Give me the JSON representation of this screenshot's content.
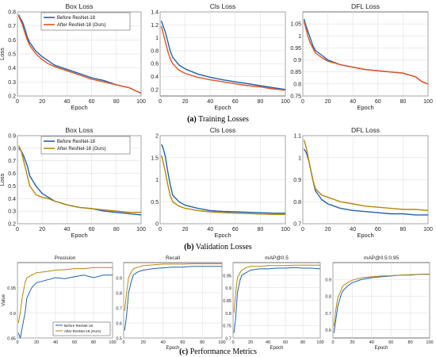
{
  "captions": {
    "a_label": "(a)",
    "a_text": "Training Losses",
    "b_label": "(b)",
    "b_text": "Validation Losses",
    "c_label": "(c)",
    "c_text": "Performance Metrics"
  },
  "colors": {
    "before": "#1f62b3",
    "after": "#e4511d",
    "after_metrics": "#b8860b"
  },
  "chart_data": [
    {
      "id": "train-box",
      "type": "line",
      "title": "Box Loss",
      "xlabel": "Epoch",
      "ylabel": "Loss",
      "xlim": [
        0,
        100
      ],
      "ylim": [
        0.2,
        0.8
      ],
      "xticks": [
        0,
        20,
        40,
        60,
        80,
        100
      ],
      "yticks": [
        0.2,
        0.3,
        0.4,
        0.5,
        0.6,
        0.7,
        0.8
      ],
      "grid": true,
      "legend": "top-right",
      "series": [
        {
          "name": "Before ResNet-18",
          "color": "#1f62b3",
          "x": [
            1,
            2,
            4,
            6,
            8,
            10,
            15,
            20,
            25,
            30,
            40,
            50,
            60,
            70,
            80,
            90,
            95,
            100
          ],
          "y": [
            0.78,
            0.76,
            0.73,
            0.68,
            0.62,
            0.58,
            0.52,
            0.48,
            0.45,
            0.42,
            0.39,
            0.36,
            0.33,
            0.31,
            0.28,
            0.26,
            0.24,
            0.22
          ]
        },
        {
          "name": "After ResNet-18 (Ours)",
          "color": "#e4511d",
          "x": [
            1,
            2,
            4,
            6,
            8,
            10,
            15,
            20,
            25,
            30,
            40,
            50,
            60,
            70,
            80,
            90,
            95,
            100
          ],
          "y": [
            0.77,
            0.75,
            0.71,
            0.65,
            0.6,
            0.56,
            0.5,
            0.46,
            0.43,
            0.41,
            0.38,
            0.35,
            0.32,
            0.3,
            0.28,
            0.26,
            0.24,
            0.22
          ]
        }
      ]
    },
    {
      "id": "train-cls",
      "type": "line",
      "title": "Cls Loss",
      "xlabel": "Epoch",
      "ylabel": "",
      "xlim": [
        0,
        100
      ],
      "ylim": [
        0.1,
        1.4
      ],
      "xticks": [
        0,
        20,
        40,
        60,
        80,
        100
      ],
      "yticks": [
        0.2,
        0.4,
        0.6,
        0.8,
        1.0,
        1.2,
        1.4
      ],
      "grid": true,
      "series": [
        {
          "name": "Before ResNet-18",
          "color": "#1f62b3",
          "x": [
            1,
            2,
            4,
            6,
            8,
            10,
            15,
            20,
            30,
            40,
            50,
            60,
            70,
            80,
            90,
            100
          ],
          "y": [
            1.26,
            1.2,
            1.1,
            0.95,
            0.8,
            0.7,
            0.58,
            0.52,
            0.44,
            0.39,
            0.35,
            0.32,
            0.29,
            0.26,
            0.23,
            0.2
          ]
        },
        {
          "name": "After ResNet-18 (Ours)",
          "color": "#e4511d",
          "x": [
            1,
            2,
            4,
            6,
            8,
            10,
            15,
            20,
            30,
            40,
            50,
            60,
            70,
            80,
            90,
            100
          ],
          "y": [
            1.18,
            1.1,
            0.95,
            0.8,
            0.68,
            0.6,
            0.5,
            0.45,
            0.39,
            0.35,
            0.32,
            0.29,
            0.26,
            0.24,
            0.21,
            0.19
          ]
        }
      ]
    },
    {
      "id": "train-dfl",
      "type": "line",
      "title": "DFL Loss",
      "xlabel": "Epoch",
      "ylabel": "",
      "xlim": [
        0,
        100
      ],
      "ylim": [
        0.75,
        1.1
      ],
      "xticks": [
        0,
        20,
        40,
        60,
        80,
        100
      ],
      "yticks": [
        0.75,
        0.8,
        0.85,
        0.9,
        0.95,
        1.0,
        1.05
      ],
      "grid": true,
      "series": [
        {
          "name": "Before ResNet-18",
          "color": "#1f62b3",
          "x": [
            1,
            2,
            4,
            6,
            8,
            10,
            15,
            20,
            30,
            40,
            50,
            60,
            70,
            80,
            90,
            95,
            100
          ],
          "y": [
            1.07,
            1.05,
            1.02,
            0.99,
            0.96,
            0.94,
            0.92,
            0.9,
            0.88,
            0.87,
            0.86,
            0.855,
            0.85,
            0.845,
            0.83,
            0.81,
            0.8
          ]
        },
        {
          "name": "After ResNet-18 (Ours)",
          "color": "#e4511d",
          "x": [
            1,
            2,
            4,
            6,
            8,
            10,
            15,
            20,
            30,
            40,
            50,
            60,
            70,
            80,
            90,
            95,
            100
          ],
          "y": [
            1.06,
            1.04,
            1.0,
            0.97,
            0.95,
            0.93,
            0.91,
            0.895,
            0.88,
            0.87,
            0.86,
            0.855,
            0.85,
            0.845,
            0.83,
            0.81,
            0.8
          ]
        }
      ]
    },
    {
      "id": "val-box",
      "type": "line",
      "title": "Box Loss",
      "xlabel": "Epoch",
      "ylabel": "Loss",
      "xlim": [
        0,
        100
      ],
      "ylim": [
        0.2,
        0.9
      ],
      "xticks": [
        0,
        20,
        40,
        60,
        80,
        100
      ],
      "yticks": [
        0.2,
        0.3,
        0.4,
        0.5,
        0.6,
        0.7,
        0.8,
        0.9
      ],
      "grid": true,
      "legend": "top-right",
      "series": [
        {
          "name": "Before ResNet-18",
          "color": "#1f62b3",
          "x": [
            1,
            3,
            5,
            8,
            10,
            15,
            20,
            25,
            30,
            40,
            50,
            60,
            70,
            80,
            90,
            100
          ],
          "y": [
            0.8,
            0.78,
            0.74,
            0.66,
            0.58,
            0.5,
            0.44,
            0.41,
            0.38,
            0.35,
            0.33,
            0.32,
            0.3,
            0.29,
            0.28,
            0.27
          ]
        },
        {
          "name": "After ResNet-18 (Ours)",
          "color": "#b8860b",
          "x": [
            1,
            3,
            5,
            8,
            10,
            15,
            20,
            25,
            30,
            40,
            50,
            60,
            70,
            80,
            90,
            100
          ],
          "y": [
            0.82,
            0.78,
            0.7,
            0.58,
            0.5,
            0.43,
            0.41,
            0.4,
            0.38,
            0.35,
            0.33,
            0.32,
            0.31,
            0.3,
            0.29,
            0.29
          ]
        }
      ]
    },
    {
      "id": "val-cls",
      "type": "line",
      "title": "Cls Loss",
      "xlabel": "Epoch",
      "ylabel": "",
      "xlim": [
        0,
        100
      ],
      "ylim": [
        0,
        2
      ],
      "xticks": [
        0,
        20,
        40,
        60,
        80,
        100
      ],
      "yticks": [
        0,
        0.5,
        1.0,
        1.5,
        2.0
      ],
      "grid": true,
      "series": [
        {
          "name": "Before ResNet-18",
          "color": "#1f62b3",
          "x": [
            1,
            2,
            4,
            6,
            8,
            10,
            15,
            20,
            30,
            40,
            50,
            60,
            70,
            80,
            90,
            100
          ],
          "y": [
            1.8,
            1.75,
            1.55,
            1.2,
            0.9,
            0.65,
            0.5,
            0.42,
            0.35,
            0.3,
            0.28,
            0.27,
            0.26,
            0.25,
            0.24,
            0.24
          ]
        },
        {
          "name": "After ResNet-18 (Ours)",
          "color": "#b8860b",
          "x": [
            1,
            2,
            4,
            6,
            8,
            10,
            15,
            20,
            30,
            40,
            50,
            60,
            70,
            80,
            90,
            100
          ],
          "y": [
            1.55,
            1.45,
            1.2,
            0.9,
            0.65,
            0.5,
            0.4,
            0.35,
            0.3,
            0.27,
            0.25,
            0.24,
            0.23,
            0.22,
            0.21,
            0.21
          ]
        }
      ]
    },
    {
      "id": "val-dfl",
      "type": "line",
      "title": "DFL Loss",
      "xlabel": "Epoch",
      "ylabel": "",
      "xlim": [
        0,
        100
      ],
      "ylim": [
        0.7,
        1.1
      ],
      "xticks": [
        0,
        20,
        40,
        60,
        80,
        100
      ],
      "yticks": [
        0.7,
        0.8,
        0.9,
        1.0,
        1.1
      ],
      "grid": true,
      "series": [
        {
          "name": "Before ResNet-18",
          "color": "#1f62b3",
          "x": [
            1,
            3,
            5,
            8,
            10,
            15,
            20,
            25,
            30,
            40,
            50,
            60,
            70,
            80,
            90,
            100
          ],
          "y": [
            1.04,
            1.02,
            0.98,
            0.9,
            0.85,
            0.81,
            0.79,
            0.78,
            0.77,
            0.76,
            0.755,
            0.75,
            0.745,
            0.745,
            0.74,
            0.74
          ]
        },
        {
          "name": "After ResNet-18 (Ours)",
          "color": "#b8860b",
          "x": [
            1,
            3,
            5,
            8,
            10,
            15,
            20,
            25,
            30,
            40,
            50,
            60,
            70,
            80,
            90,
            100
          ],
          "y": [
            1.08,
            1.04,
            0.98,
            0.9,
            0.86,
            0.83,
            0.82,
            0.81,
            0.8,
            0.79,
            0.78,
            0.775,
            0.77,
            0.765,
            0.765,
            0.76
          ]
        }
      ]
    },
    {
      "id": "precision",
      "type": "line",
      "title": "Precision",
      "xlabel": "",
      "ylabel": "Value",
      "xlim": [
        0,
        100
      ],
      "ylim": [
        0.85,
        1.0
      ],
      "xticks": [
        0,
        20,
        40,
        60,
        80,
        100
      ],
      "yticks": [
        0.85,
        0.9,
        0.95
      ],
      "grid": true,
      "legend": "bottom-right",
      "series": [
        {
          "name": "Before ResNet-18",
          "color": "#1f62b3",
          "x": [
            1,
            3,
            5,
            8,
            10,
            15,
            20,
            30,
            40,
            50,
            60,
            70,
            80,
            90,
            100
          ],
          "y": [
            0.86,
            0.85,
            0.87,
            0.9,
            0.93,
            0.95,
            0.96,
            0.965,
            0.97,
            0.968,
            0.972,
            0.975,
            0.97,
            0.975,
            0.975
          ]
        },
        {
          "name": "After ResNet-18 (Ours)",
          "color": "#b8860b",
          "x": [
            1,
            3,
            5,
            8,
            10,
            15,
            20,
            30,
            40,
            50,
            60,
            70,
            80,
            90,
            100
          ],
          "y": [
            0.88,
            0.9,
            0.93,
            0.96,
            0.97,
            0.975,
            0.98,
            0.982,
            0.985,
            0.986,
            0.988,
            0.988,
            0.99,
            0.99,
            0.99
          ]
        }
      ]
    },
    {
      "id": "recall",
      "type": "line",
      "title": "Recall",
      "xlabel": "Epoch",
      "ylabel": "",
      "xlim": [
        0,
        100
      ],
      "ylim": [
        0.5,
        1.0
      ],
      "xticks": [
        0,
        20,
        40,
        60,
        80,
        100
      ],
      "yticks": [
        0.5,
        0.6,
        0.7,
        0.8,
        0.9
      ],
      "grid": true,
      "series": [
        {
          "name": "Before ResNet-18",
          "color": "#1f62b3",
          "x": [
            1,
            3,
            5,
            8,
            10,
            15,
            20,
            30,
            40,
            50,
            60,
            70,
            80,
            90,
            100
          ],
          "y": [
            0.55,
            0.65,
            0.8,
            0.88,
            0.92,
            0.94,
            0.95,
            0.96,
            0.965,
            0.97,
            0.97,
            0.975,
            0.975,
            0.975,
            0.975
          ]
        },
        {
          "name": "After ResNet-18 (Ours)",
          "color": "#b8860b",
          "x": [
            1,
            3,
            5,
            8,
            10,
            15,
            20,
            30,
            40,
            50,
            60,
            70,
            80,
            90,
            100
          ],
          "y": [
            0.68,
            0.8,
            0.9,
            0.94,
            0.96,
            0.97,
            0.98,
            0.985,
            0.99,
            0.99,
            0.99,
            0.992,
            0.992,
            0.992,
            0.992
          ]
        }
      ]
    },
    {
      "id": "map50",
      "type": "line",
      "title": "mAP@0.5",
      "xlabel": "Epoch",
      "ylabel": "",
      "xlim": [
        0,
        100
      ],
      "ylim": [
        0.7,
        1.0
      ],
      "xticks": [
        0,
        20,
        40,
        60,
        80,
        100
      ],
      "yticks": [
        0.7,
        0.75,
        0.8,
        0.85,
        0.9,
        0.95
      ],
      "grid": true,
      "series": [
        {
          "name": "Before ResNet-18",
          "color": "#1f62b3",
          "x": [
            1,
            3,
            5,
            8,
            10,
            15,
            20,
            30,
            40,
            50,
            60,
            70,
            80,
            90,
            100
          ],
          "y": [
            0.72,
            0.78,
            0.88,
            0.93,
            0.95,
            0.96,
            0.97,
            0.975,
            0.975,
            0.978,
            0.978,
            0.98,
            0.978,
            0.978,
            0.975
          ]
        },
        {
          "name": "After ResNet-18 (Ours)",
          "color": "#b8860b",
          "x": [
            1,
            3,
            5,
            8,
            10,
            15,
            20,
            30,
            40,
            50,
            60,
            70,
            80,
            90,
            100
          ],
          "y": [
            0.8,
            0.88,
            0.94,
            0.96,
            0.97,
            0.98,
            0.985,
            0.985,
            0.988,
            0.988,
            0.988,
            0.99,
            0.99,
            0.99,
            0.99
          ]
        }
      ]
    },
    {
      "id": "map5095",
      "type": "line",
      "title": "mAP@0.5:0.95",
      "xlabel": "Epoch",
      "ylabel": "",
      "xlim": [
        0,
        100
      ],
      "ylim": [
        0.55,
        1.0
      ],
      "xticks": [
        0,
        20,
        40,
        60,
        80,
        100
      ],
      "yticks": [
        0.6,
        0.7,
        0.8,
        0.9
      ],
      "grid": true,
      "series": [
        {
          "name": "Before ResNet-18",
          "color": "#1f62b3",
          "x": [
            1,
            3,
            5,
            8,
            10,
            15,
            20,
            30,
            40,
            50,
            60,
            70,
            80,
            90,
            100
          ],
          "y": [
            0.58,
            0.66,
            0.74,
            0.8,
            0.83,
            0.86,
            0.88,
            0.9,
            0.91,
            0.915,
            0.92,
            0.925,
            0.925,
            0.93,
            0.93
          ]
        },
        {
          "name": "After ResNet-18 (Ours)",
          "color": "#b8860b",
          "x": [
            1,
            3,
            5,
            8,
            10,
            15,
            20,
            30,
            40,
            50,
            60,
            70,
            80,
            90,
            100
          ],
          "y": [
            0.62,
            0.72,
            0.79,
            0.83,
            0.86,
            0.88,
            0.895,
            0.91,
            0.915,
            0.92,
            0.922,
            0.925,
            0.928,
            0.93,
            0.932
          ]
        }
      ]
    }
  ]
}
